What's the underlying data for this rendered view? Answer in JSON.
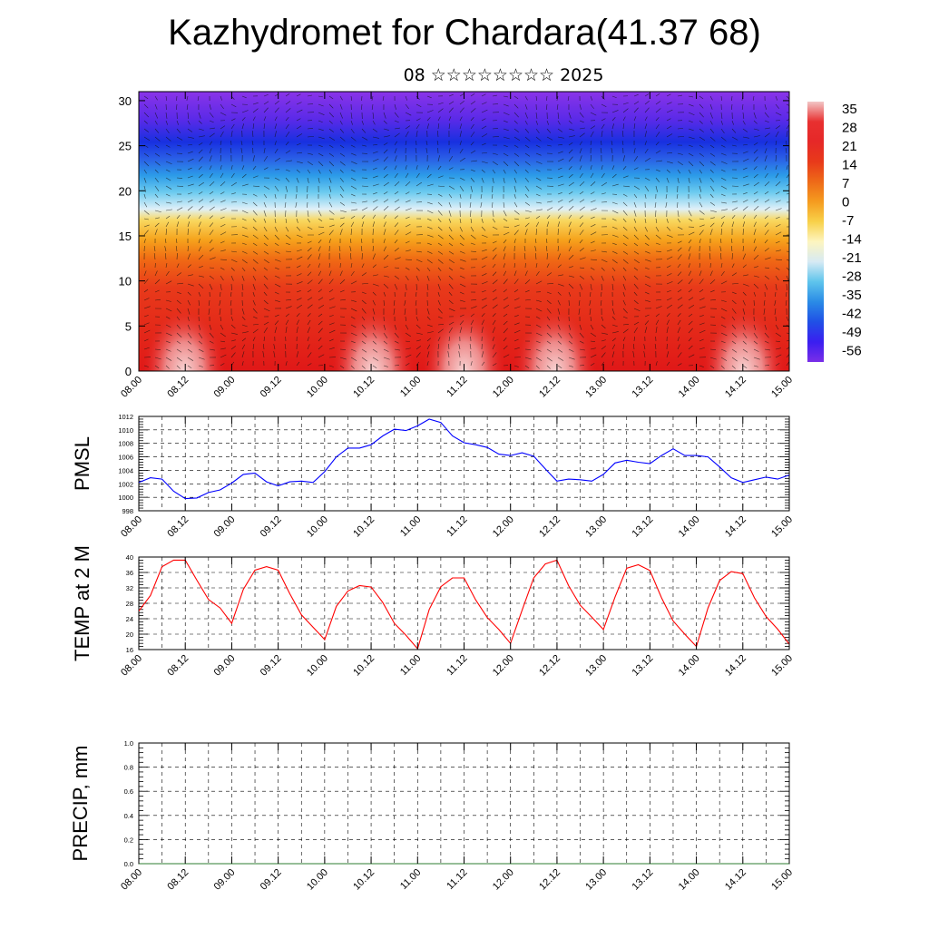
{
  "header": {
    "title": "Kazhydromet for Chardara(41.37 68)",
    "subtitle": "08 ☆☆☆☆☆☆☆☆ 2025"
  },
  "colors": {
    "pmsl_line": "#0000ff",
    "temp_line": "#ff0000",
    "precip_line": "#2e7d32",
    "grid": "#000000"
  },
  "time_labels": [
    "08.00",
    "08.12",
    "09.00",
    "09.12",
    "10.00",
    "10.12",
    "11.00",
    "11.12",
    "12.00",
    "12.12",
    "13.00",
    "13.12",
    "14.00",
    "14.12",
    "15.00"
  ],
  "chart_data": [
    {
      "type": "heatmap",
      "id": "cross_section",
      "title": "",
      "xlabel": "",
      "ylabel": "",
      "x_categories": [
        "08.00",
        "08.12",
        "09.00",
        "09.12",
        "10.00",
        "10.12",
        "11.00",
        "11.12",
        "12.00",
        "12.12",
        "13.00",
        "13.12",
        "14.00",
        "14.12",
        "15.00"
      ],
      "ylim": [
        0,
        31
      ],
      "y_ticks": [
        0,
        5,
        10,
        15,
        20,
        25,
        30
      ],
      "colorbar_labels": [
        "35",
        "28",
        "21",
        "14",
        "7",
        "0",
        "-7",
        "-14",
        "-21",
        "-28",
        "-35",
        "-42",
        "-49",
        "-56"
      ],
      "colorbar_colors": [
        "#f2c6c6",
        "#e83030",
        "#e62828",
        "#e83a1a",
        "#ee6a18",
        "#f59c1f",
        "#f8d14a",
        "#fdf5c0",
        "#d6eaf4",
        "#5ec4ec",
        "#2a8be6",
        "#2050e6",
        "#3a1ef0",
        "#7a2ee8"
      ],
      "overlay": "wind vectors"
    },
    {
      "type": "line",
      "id": "pmsl",
      "ylabel": "PMSL",
      "ylim": [
        998,
        1012
      ],
      "y_ticks": [
        998,
        1000,
        1002,
        1004,
        1006,
        1008,
        1010,
        1012
      ],
      "x": [
        0,
        3,
        6,
        9,
        12,
        15,
        18,
        21,
        24,
        27,
        30,
        33,
        36,
        39,
        42,
        45,
        48,
        51,
        54,
        57,
        60,
        63,
        66,
        69,
        72,
        75,
        78,
        81,
        84,
        87,
        90,
        93,
        96,
        99,
        102,
        105,
        108,
        111,
        114,
        117,
        120,
        123,
        126,
        129,
        132,
        135,
        138,
        141,
        144,
        147,
        150,
        153,
        156,
        159,
        162,
        165,
        168
      ],
      "series": [
        {
          "name": "",
          "values": [
            1002.2,
            1002.9,
            1002.7,
            1000.9,
            999.8,
            999.9,
            1000.7,
            1001.1,
            1002.1,
            1003.4,
            1003.6,
            1002.3,
            1001.7,
            1002.3,
            1002.4,
            1002.2,
            1003.8,
            1006.0,
            1007.3,
            1007.3,
            1007.8,
            1009.1,
            1010.1,
            1009.9,
            1010.6,
            1011.6,
            1011.1,
            1009.1,
            1008.1,
            1007.8,
            1007.4,
            1006.4,
            1006.2,
            1006.6,
            1006.1,
            1004.2,
            1002.4,
            1002.7,
            1002.6,
            1002.4,
            1003.4,
            1005.1,
            1005.5,
            1005.2,
            1005.0,
            1006.2,
            1007.2,
            1006.2,
            1006.2,
            1006.0,
            1004.5,
            1002.9,
            1002.2,
            1002.6,
            1003.0,
            1002.7,
            1003.3
          ]
        }
      ]
    },
    {
      "type": "line",
      "id": "temp",
      "ylabel": "TEMP at 2 M",
      "ylim": [
        16,
        40
      ],
      "y_ticks": [
        16,
        20,
        24,
        28,
        32,
        36,
        40
      ],
      "x": [
        0,
        3,
        6,
        9,
        12,
        15,
        18,
        21,
        24,
        27,
        30,
        33,
        36,
        39,
        42,
        45,
        48,
        51,
        54,
        57,
        60,
        63,
        66,
        69,
        72,
        75,
        78,
        81,
        84,
        87,
        90,
        93,
        96,
        99,
        102,
        105,
        108,
        111,
        114,
        117,
        120,
        123,
        126,
        129,
        132,
        135,
        138,
        141,
        144,
        147,
        150,
        153,
        156,
        159,
        162,
        165,
        168
      ],
      "series": [
        {
          "name": "",
          "values": [
            26.0,
            30.0,
            37.5,
            39.2,
            39.2,
            34.0,
            29.0,
            26.8,
            22.8,
            31.6,
            36.6,
            37.5,
            36.6,
            30.5,
            25.0,
            21.8,
            18.6,
            27.2,
            31.2,
            32.6,
            32.2,
            28.2,
            22.8,
            19.7,
            16.2,
            26.4,
            32.3,
            34.6,
            34.6,
            28.9,
            24.3,
            21.2,
            17.6,
            26.2,
            34.6,
            38.2,
            39.2,
            32.6,
            27.5,
            24.4,
            21.2,
            29.6,
            37.1,
            38.0,
            36.5,
            29.4,
            23.4,
            20.0,
            16.8,
            26.8,
            33.9,
            36.2,
            35.7,
            29.4,
            24.6,
            21.3,
            17.4
          ]
        }
      ]
    },
    {
      "type": "line",
      "id": "precip",
      "ylabel": "PRECIP, mm",
      "ylim": [
        0.0,
        1.0
      ],
      "y_ticks": [
        0.0,
        0.2,
        0.4,
        0.6,
        0.8,
        1.0
      ],
      "y_tick_labels": [
        "0.0",
        "0.2",
        "0.4",
        "0.6",
        "0.8",
        "1.0"
      ],
      "x": [
        0,
        12,
        24,
        36,
        48,
        60,
        72,
        84,
        96,
        108,
        120,
        132,
        144,
        156,
        168
      ],
      "series": [
        {
          "name": "",
          "values": [
            0,
            0,
            0,
            0,
            0,
            0,
            0,
            0,
            0,
            0,
            0,
            0,
            0,
            0,
            0
          ]
        }
      ]
    }
  ]
}
